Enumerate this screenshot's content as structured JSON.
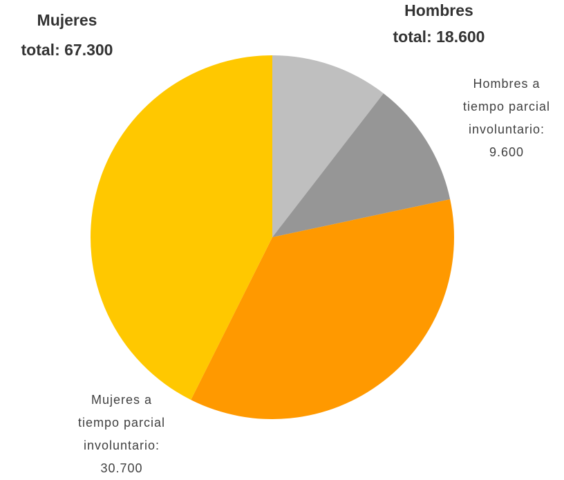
{
  "chart_data": {
    "type": "pie",
    "categories": [
      null,
      "Hombres a tiempo parcial involuntario:",
      "Mujeres a tiempo parcial involuntario:",
      null
    ],
    "values": [
      9000,
      9600,
      30700,
      36600
    ],
    "value_labels": [
      null,
      "9.600",
      "30.700",
      null
    ],
    "colors": [
      "#bfbfbf",
      "#969696",
      "#ff9900",
      "#ffc800"
    ],
    "annotations": [
      "Hombres",
      "total: 18.600",
      "Mujeres",
      "total: 67.300"
    ]
  }
}
